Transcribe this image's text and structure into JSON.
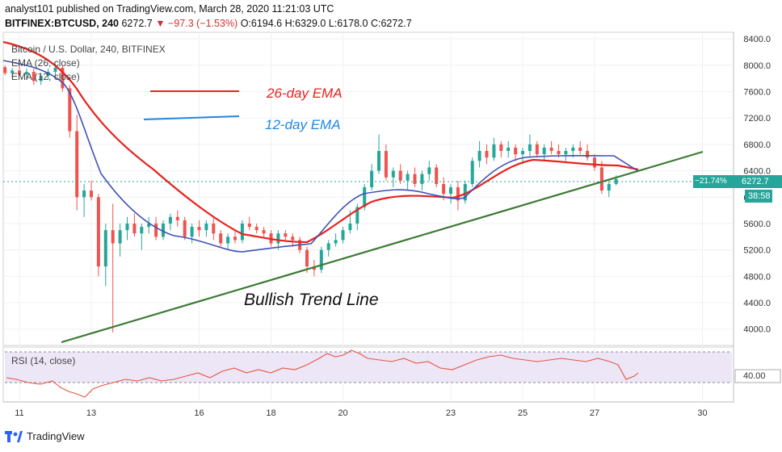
{
  "header": {
    "line1": "analyst101 published on TradingView.com, March 28, 2020 11:21:03 UTC",
    "symbol": "BITFINEX:BTCUSD, 240",
    "last": "6272.7",
    "change": "▼ −97.3 (−1.53%)",
    "ohlc": "O:6194.6 H:6329.0 L:6178.0 C:6272.7"
  },
  "legend": {
    "title": "Bitcoin / U.S. Dollar, 240, BITFINEX",
    "ema26": "EMA (26, close)",
    "ema12": "EMA (12, close)"
  },
  "annotations": {
    "ema26_label": "26-day EMA",
    "ema12_label": "12-day EMA",
    "trend_label": "Bullish Trend Line"
  },
  "price_badge": {
    "pct": "−21.74%",
    "price": "6272.7",
    "countdown": "38:58"
  },
  "rsi": {
    "label": "RSI (14, close)",
    "level_label": "40.00"
  },
  "footer": {
    "brand": "TradingView"
  },
  "colors": {
    "up": "#26a69a",
    "down": "#ef5350",
    "ema26": "#e8231f",
    "ema12": "#3f51b5",
    "trend": "#3d7a35",
    "rsi": "#e9553f",
    "badge": "#26a69a"
  },
  "chart_data": {
    "type": "candlestick",
    "y_ticks": [
      "8400.0",
      "8000.0",
      "7600.0",
      "7200.0",
      "6800.0",
      "6400.0",
      "6000.0",
      "5600.0",
      "5200.0",
      "4800.0",
      "4400.0",
      "4000.0"
    ],
    "ylim": [
      3850,
      8450
    ],
    "x_ticks": [
      {
        "label": "11",
        "day": 11
      },
      {
        "label": "13",
        "day": 13
      },
      {
        "label": "16",
        "day": 16
      },
      {
        "label": "18",
        "day": 18
      },
      {
        "label": "20",
        "day": 20
      },
      {
        "label": "23",
        "day": 23
      },
      {
        "label": "25",
        "day": 25
      },
      {
        "label": "27",
        "day": 27
      },
      {
        "label": "30",
        "day": 30
      }
    ],
    "candles": [
      [
        10.2,
        7950,
        8050,
        7900,
        8020
      ],
      [
        10.4,
        8020,
        8080,
        7920,
        7970
      ],
      [
        10.6,
        7970,
        8000,
        7850,
        7880
      ],
      [
        10.8,
        7880,
        7960,
        7800,
        7920
      ],
      [
        11.0,
        7920,
        8000,
        7840,
        7860
      ],
      [
        11.2,
        7860,
        7950,
        7780,
        7900
      ],
      [
        11.4,
        7900,
        7950,
        7700,
        7760
      ],
      [
        11.6,
        7760,
        7880,
        7700,
        7840
      ],
      [
        11.8,
        7840,
        7950,
        7780,
        7900
      ],
      [
        12.0,
        7900,
        8020,
        7820,
        7960
      ],
      [
        12.2,
        7960,
        8000,
        7600,
        7650
      ],
      [
        12.4,
        7650,
        7700,
        6900,
        7000
      ],
      [
        12.6,
        7000,
        7250,
        5800,
        6000
      ],
      [
        12.8,
        6000,
        6200,
        5700,
        6100
      ],
      [
        13.0,
        6100,
        6250,
        5950,
        6000
      ],
      [
        13.2,
        6000,
        6050,
        4800,
        4950
      ],
      [
        13.4,
        4950,
        5600,
        4650,
        5500
      ],
      [
        13.6,
        5500,
        5900,
        3950,
        5300
      ],
      [
        13.8,
        5300,
        5600,
        5100,
        5500
      ],
      [
        14.0,
        5500,
        5700,
        5350,
        5600
      ],
      [
        14.2,
        5600,
        5750,
        5400,
        5450
      ],
      [
        14.4,
        5450,
        5600,
        5200,
        5550
      ],
      [
        14.6,
        5550,
        5700,
        5450,
        5600
      ],
      [
        14.8,
        5600,
        5700,
        5350,
        5400
      ],
      [
        15.0,
        5400,
        5650,
        5350,
        5600
      ],
      [
        15.2,
        5600,
        5750,
        5500,
        5700
      ],
      [
        15.4,
        5700,
        5800,
        5550,
        5650
      ],
      [
        15.6,
        5650,
        5700,
        5350,
        5400
      ],
      [
        15.8,
        5400,
        5600,
        5300,
        5550
      ],
      [
        16.0,
        5550,
        5650,
        5400,
        5500
      ],
      [
        16.2,
        5500,
        5650,
        5400,
        5600
      ],
      [
        16.4,
        5600,
        5700,
        5350,
        5450
      ],
      [
        16.6,
        5450,
        5500,
        5250,
        5300
      ],
      [
        16.8,
        5300,
        5450,
        5200,
        5400
      ],
      [
        17.0,
        5400,
        5500,
        5300,
        5350
      ],
      [
        17.2,
        5350,
        5650,
        5300,
        5600
      ],
      [
        17.4,
        5600,
        5700,
        5500,
        5550
      ],
      [
        17.6,
        5550,
        5600,
        5450,
        5500
      ],
      [
        17.8,
        5500,
        5550,
        5400,
        5450
      ],
      [
        18.0,
        5450,
        5500,
        5250,
        5300
      ],
      [
        18.2,
        5300,
        5500,
        5200,
        5450
      ],
      [
        18.4,
        5450,
        5500,
        5350,
        5400
      ],
      [
        18.6,
        5400,
        5450,
        5250,
        5350
      ],
      [
        18.8,
        5350,
        5400,
        5150,
        5200
      ],
      [
        19.0,
        5200,
        5250,
        4850,
        4950
      ],
      [
        19.2,
        4950,
        5050,
        4800,
        4900
      ],
      [
        19.4,
        4900,
        5250,
        4850,
        5200
      ],
      [
        19.6,
        5200,
        5350,
        5100,
        5300
      ],
      [
        19.8,
        5300,
        5450,
        5250,
        5350
      ],
      [
        20.0,
        5350,
        5550,
        5300,
        5500
      ],
      [
        20.2,
        5500,
        5800,
        5450,
        5600
      ],
      [
        20.4,
        5600,
        5900,
        5500,
        5850
      ]
    ],
    "ema26_note": "26-day EMA",
    "ema12_note": "12-day EMA",
    "rsi_level": 40
  }
}
